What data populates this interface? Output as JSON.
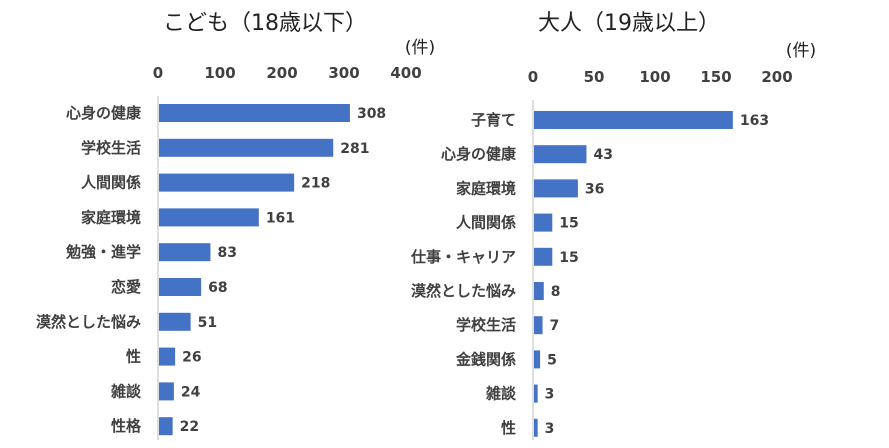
{
  "chart_data": [
    {
      "type": "bar",
      "orientation": "horizontal",
      "title": "こども（18歳以下）",
      "unit_label": "(件)",
      "xlim": [
        0,
        400
      ],
      "ticks": [
        0,
        100,
        200,
        300,
        400
      ],
      "tick_labels": [
        "0",
        "100",
        "200",
        "300",
        "400"
      ],
      "axis_position": "top",
      "grid": false,
      "categories": [
        "心身の健康",
        "学校生活",
        "人間関係",
        "家庭環境",
        "勉強・進学",
        "恋愛",
        "漠然とした悩み",
        "性",
        "雑談",
        "性格"
      ],
      "values": [
        308,
        281,
        218,
        161,
        83,
        68,
        51,
        26,
        24,
        22
      ],
      "value_labels": [
        "308",
        "281",
        "218",
        "161",
        "83",
        "68",
        "51",
        "26",
        "24",
        "22"
      ]
    },
    {
      "type": "bar",
      "orientation": "horizontal",
      "title": "大人（19歳以上）",
      "unit_label": "(件)",
      "xlim": [
        0,
        200
      ],
      "ticks": [
        0,
        50,
        100,
        150,
        200
      ],
      "tick_labels": [
        "0",
        "50",
        "100",
        "150",
        "200"
      ],
      "axis_position": "top",
      "grid": false,
      "categories": [
        "子育て",
        "心身の健康",
        "家庭環境",
        "人間関係",
        "仕事・キャリア",
        "漠然とした悩み",
        "学校生活",
        "金銭関係",
        "雑談",
        "性"
      ],
      "values": [
        163,
        43,
        36,
        15,
        15,
        8,
        7,
        5,
        3,
        3
      ],
      "value_labels": [
        "163",
        "43",
        "36",
        "15",
        "15",
        "8",
        "7",
        "5",
        "3",
        "3"
      ]
    }
  ],
  "colors": {
    "bar": "#4472C4",
    "axis": "#BFBFBF",
    "text": "#404040"
  }
}
